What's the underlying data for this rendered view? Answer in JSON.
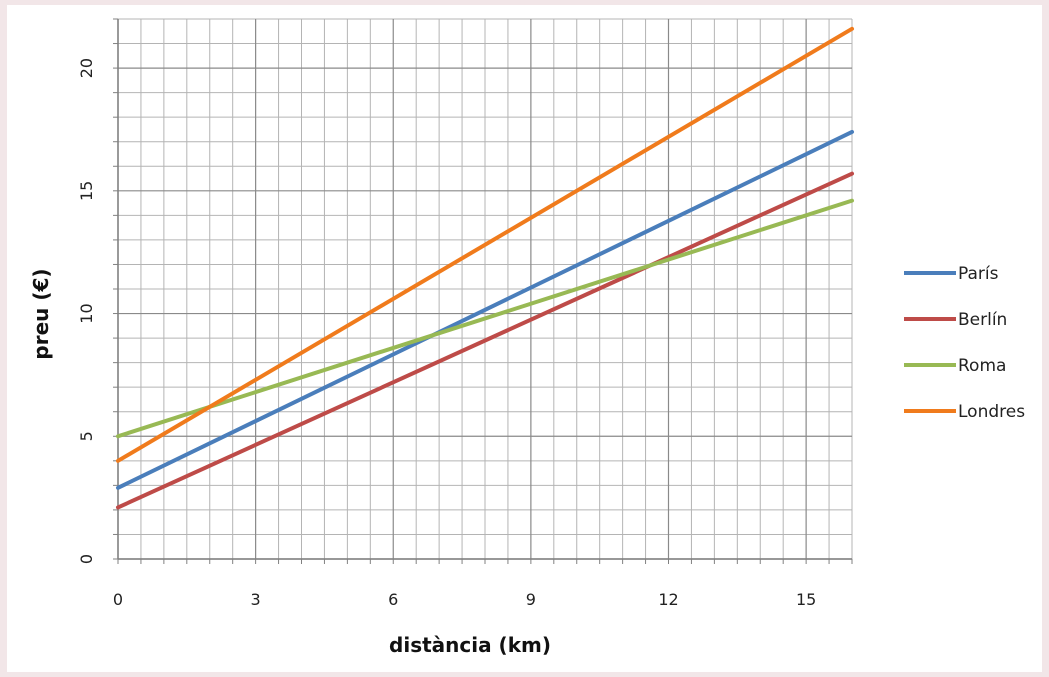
{
  "chart_data": {
    "type": "line",
    "title": "",
    "xlabel": "distància (km)",
    "ylabel": "preu (€)",
    "xlim": [
      0,
      16
    ],
    "ylim": [
      0,
      22
    ],
    "x_ticks": [
      0,
      3,
      6,
      9,
      12,
      15
    ],
    "y_ticks": [
      0,
      5,
      10,
      15,
      20
    ],
    "grid": true,
    "legend_position": "right",
    "series": [
      {
        "name": "París",
        "color": "#4a7ebb",
        "x": [
          0,
          16
        ],
        "y": [
          2.9,
          17.4
        ]
      },
      {
        "name": "Berlín",
        "color": "#be4b48",
        "x": [
          0,
          16
        ],
        "y": [
          2.1,
          15.7
        ]
      },
      {
        "name": "Roma",
        "color": "#98b954",
        "x": [
          0,
          16
        ],
        "y": [
          5.0,
          14.6
        ]
      },
      {
        "name": "Londres",
        "color": "#f07b1c",
        "x": [
          0,
          16
        ],
        "y": [
          4.0,
          21.6
        ]
      }
    ]
  }
}
